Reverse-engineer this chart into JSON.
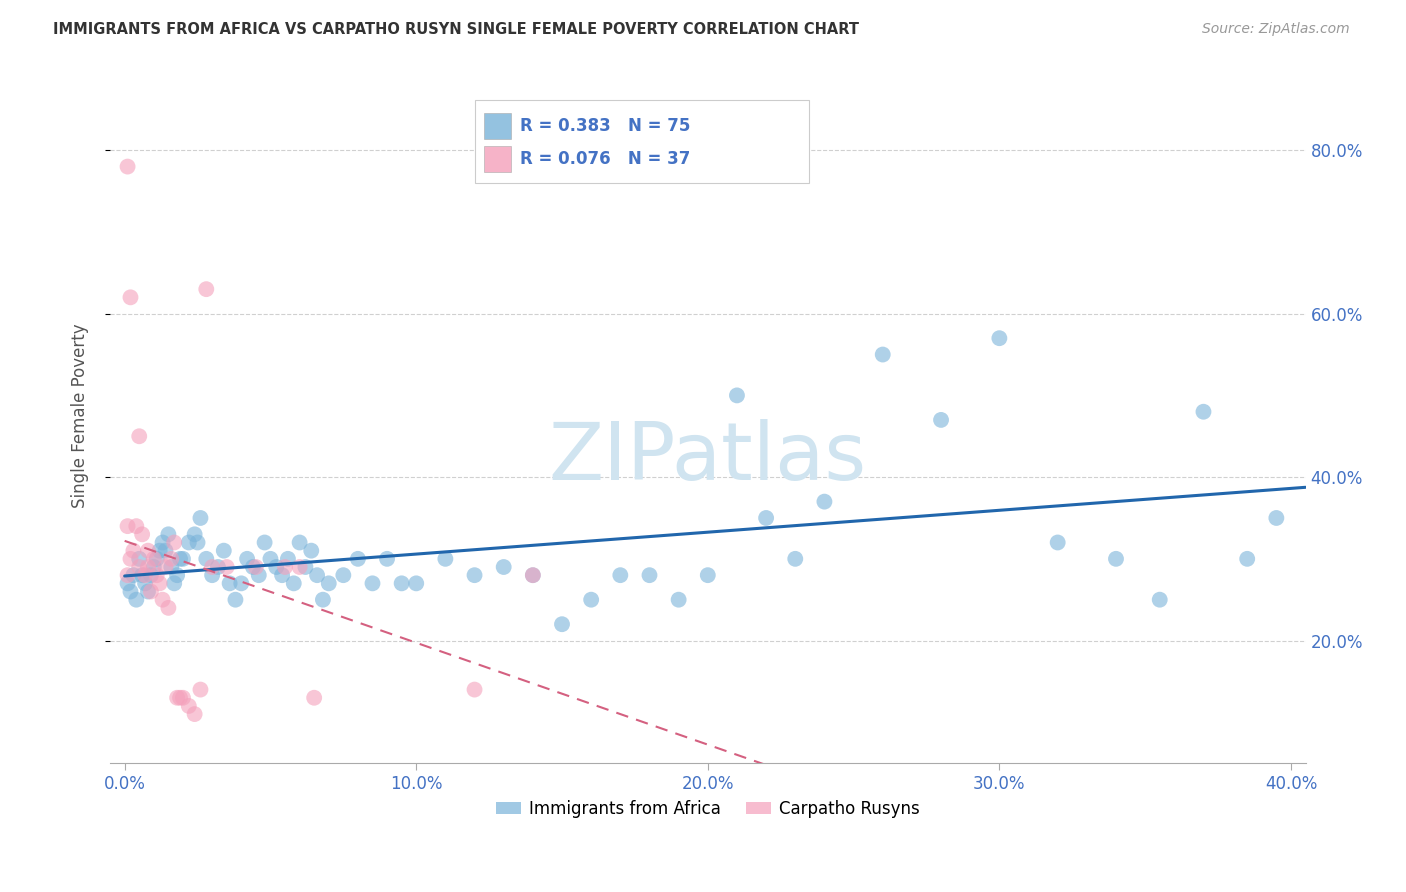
{
  "title": "IMMIGRANTS FROM AFRICA VS CARPATHO RUSYN SINGLE FEMALE POVERTY CORRELATION CHART",
  "source": "Source: ZipAtlas.com",
  "ylabel": "Single Female Poverty",
  "xlim": [
    -0.005,
    0.405
  ],
  "ylim": [
    0.05,
    0.9
  ],
  "xtick_values": [
    0.0,
    0.1,
    0.2,
    0.3,
    0.4
  ],
  "xtick_labels": [
    "0.0%",
    "10.0%",
    "20.0%",
    "30.0%",
    "40.0%"
  ],
  "ytick_values": [
    0.2,
    0.4,
    0.6,
    0.8
  ],
  "ytick_labels": [
    "20.0%",
    "40.0%",
    "60.0%",
    "80.0%"
  ],
  "legend_r1": "R = 0.383",
  "legend_n1": "N = 75",
  "legend_r2": "R = 0.076",
  "legend_n2": "N = 37",
  "blue_color": "#7ab3d9",
  "pink_color": "#f4a0bb",
  "blue_line_color": "#2166ac",
  "pink_line_color": "#d46080",
  "legend_text_color": "#4472c4",
  "tick_color": "#4472c4",
  "watermark": "ZIPatlas",
  "watermark_color": "#d0e4f0",
  "blue_x": [
    0.001,
    0.002,
    0.003,
    0.004,
    0.005,
    0.006,
    0.007,
    0.008,
    0.009,
    0.01,
    0.011,
    0.012,
    0.013,
    0.014,
    0.015,
    0.016,
    0.017,
    0.018,
    0.019,
    0.02,
    0.022,
    0.024,
    0.025,
    0.026,
    0.028,
    0.03,
    0.032,
    0.034,
    0.036,
    0.038,
    0.04,
    0.042,
    0.044,
    0.046,
    0.048,
    0.05,
    0.052,
    0.054,
    0.056,
    0.058,
    0.06,
    0.062,
    0.064,
    0.066,
    0.068,
    0.07,
    0.075,
    0.08,
    0.085,
    0.09,
    0.095,
    0.1,
    0.11,
    0.12,
    0.13,
    0.14,
    0.15,
    0.16,
    0.17,
    0.18,
    0.19,
    0.2,
    0.21,
    0.22,
    0.23,
    0.24,
    0.26,
    0.28,
    0.3,
    0.32,
    0.34,
    0.355,
    0.37,
    0.385,
    0.395
  ],
  "blue_y": [
    0.27,
    0.26,
    0.28,
    0.25,
    0.3,
    0.28,
    0.27,
    0.26,
    0.28,
    0.29,
    0.3,
    0.31,
    0.32,
    0.31,
    0.33,
    0.29,
    0.27,
    0.28,
    0.3,
    0.3,
    0.32,
    0.33,
    0.32,
    0.35,
    0.3,
    0.28,
    0.29,
    0.31,
    0.27,
    0.25,
    0.27,
    0.3,
    0.29,
    0.28,
    0.32,
    0.3,
    0.29,
    0.28,
    0.3,
    0.27,
    0.32,
    0.29,
    0.31,
    0.28,
    0.25,
    0.27,
    0.28,
    0.3,
    0.27,
    0.3,
    0.27,
    0.27,
    0.3,
    0.28,
    0.29,
    0.28,
    0.22,
    0.25,
    0.28,
    0.28,
    0.25,
    0.28,
    0.5,
    0.35,
    0.3,
    0.37,
    0.55,
    0.47,
    0.57,
    0.32,
    0.3,
    0.25,
    0.48,
    0.3,
    0.35
  ],
  "pink_x": [
    0.001,
    0.001,
    0.001,
    0.002,
    0.002,
    0.003,
    0.004,
    0.005,
    0.006,
    0.007,
    0.008,
    0.008,
    0.009,
    0.01,
    0.011,
    0.012,
    0.013,
    0.014,
    0.015,
    0.016,
    0.017,
    0.018,
    0.019,
    0.02,
    0.022,
    0.024,
    0.026,
    0.028,
    0.03,
    0.035,
    0.045,
    0.055,
    0.06,
    0.065,
    0.12,
    0.14,
    0.005
  ],
  "pink_y": [
    0.78,
    0.34,
    0.28,
    0.3,
    0.62,
    0.31,
    0.34,
    0.29,
    0.33,
    0.28,
    0.31,
    0.29,
    0.26,
    0.3,
    0.28,
    0.27,
    0.25,
    0.29,
    0.24,
    0.3,
    0.32,
    0.13,
    0.13,
    0.13,
    0.12,
    0.11,
    0.14,
    0.63,
    0.29,
    0.29,
    0.29,
    0.29,
    0.29,
    0.13,
    0.14,
    0.28,
    0.45
  ]
}
